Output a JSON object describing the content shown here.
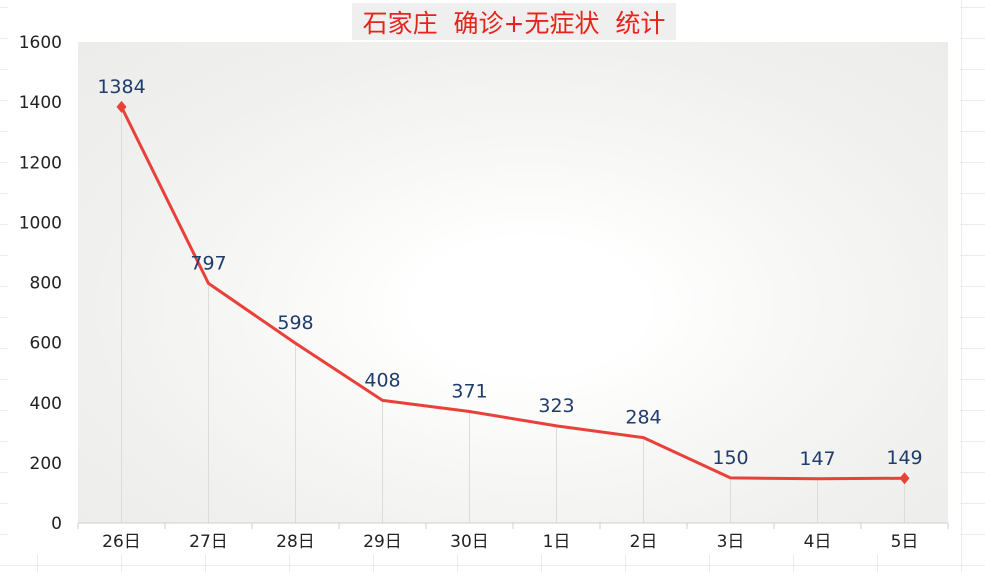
{
  "chart_data": {
    "type": "line",
    "title": "石家庄  确诊+无症状  统计",
    "categories": [
      "26日",
      "27日",
      "28日",
      "29日",
      "30日",
      "1日",
      "2日",
      "3日",
      "4日",
      "5日"
    ],
    "values": [
      1384,
      797,
      598,
      408,
      371,
      323,
      284,
      150,
      147,
      149
    ],
    "data_labels": [
      "1384",
      "797",
      "598",
      "408",
      "371",
      "323",
      "284",
      "150",
      "147",
      "149"
    ],
    "ylim": [
      0,
      1600
    ],
    "yticks": [
      0,
      200,
      400,
      600,
      800,
      1000,
      1200,
      1400,
      1600
    ],
    "ytick_labels": [
      "0",
      "200",
      "400",
      "600",
      "800",
      "1000",
      "1200",
      "1400",
      "1600"
    ],
    "grid": false,
    "colors": {
      "line": "#e8413a",
      "title": "#e8231b",
      "labels": "#1f3c6e"
    }
  }
}
